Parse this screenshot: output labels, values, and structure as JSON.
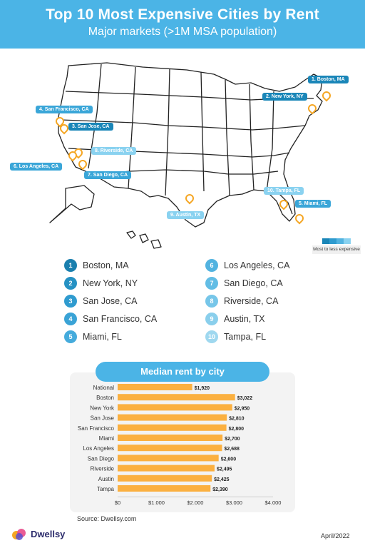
{
  "header": {
    "title": "Top 10 Most Expensive Cities by Rent",
    "subtitle": "Major markets (>1M MSA population)"
  },
  "map": {
    "labels": [
      {
        "text": "1. Boston, MA",
        "shade": "dark"
      },
      {
        "text": "2. New York, NY",
        "shade": "dark"
      },
      {
        "text": "3. San Jose, CA",
        "shade": "dark"
      },
      {
        "text": "4. San Francisco, CA",
        "shade": "mid"
      },
      {
        "text": "5. Miami, FL",
        "shade": "mid"
      },
      {
        "text": "6. Los Angeles, CA",
        "shade": "mid"
      },
      {
        "text": "7. San Diego, CA",
        "shade": "mid"
      },
      {
        "text": "8. Riverside, CA",
        "shade": "light"
      },
      {
        "text": "9. Austin, TX",
        "shade": "light"
      },
      {
        "text": "10. Tampa, FL",
        "shade": "light"
      }
    ],
    "legend_text": "Most to less expensive",
    "colors": {
      "dark": "#1a86b8",
      "mid": "#3aa6d8",
      "light": "#8ad2f0",
      "pin": "#f5a623"
    }
  },
  "city_list": [
    {
      "num": "1",
      "name": "Boston, MA",
      "color": "#1a7fae"
    },
    {
      "num": "2",
      "name": "New York, NY",
      "color": "#2591c3"
    },
    {
      "num": "3",
      "name": "San Jose, CA",
      "color": "#2f9bcf"
    },
    {
      "num": "4",
      "name": "San Francisco, CA",
      "color": "#3aa3d6"
    },
    {
      "num": "5",
      "name": "Miami, FL",
      "color": "#45abdc"
    },
    {
      "num": "6",
      "name": "Los Angeles, CA",
      "color": "#52b3e0"
    },
    {
      "num": "7",
      "name": "San Diego, CA",
      "color": "#62bde5"
    },
    {
      "num": "8",
      "name": "Riverside, CA",
      "color": "#76c6e9"
    },
    {
      "num": "9",
      "name": "Austin, TX",
      "color": "#8acfec"
    },
    {
      "num": "10",
      "name": "Tampa, FL",
      "color": "#9fd8ef"
    }
  ],
  "chart_data": {
    "type": "bar",
    "orientation": "horizontal",
    "title": "Median rent by city",
    "categories": [
      "National",
      "Boston",
      "New York",
      "San Jose",
      "San Francisco",
      "Miami",
      "Los Angeles",
      "San Diego",
      "Riverside",
      "Austin",
      "Tampa"
    ],
    "values": [
      1920,
      3022,
      2950,
      2810,
      2800,
      2700,
      2688,
      2600,
      2495,
      2425,
      2390
    ],
    "value_labels": [
      "$1,920",
      "$3,022",
      "$2,950",
      "$2,810",
      "$2,800",
      "$2,700",
      "$2,688",
      "$2,600",
      "$2,495",
      "$2,425",
      "$2,390"
    ],
    "xlim": [
      0,
      4000
    ],
    "xticks": [
      0,
      1000,
      2000,
      3000,
      4000
    ],
    "xtick_labels": [
      "$0",
      "$1.000",
      "$2.000",
      "$3.000",
      "$4.000"
    ],
    "bar_color": "#fbb040",
    "grid": false
  },
  "footer": {
    "source": "Source: Dwellsy.com",
    "brand": "Dwellsy",
    "date": "April/2022"
  }
}
